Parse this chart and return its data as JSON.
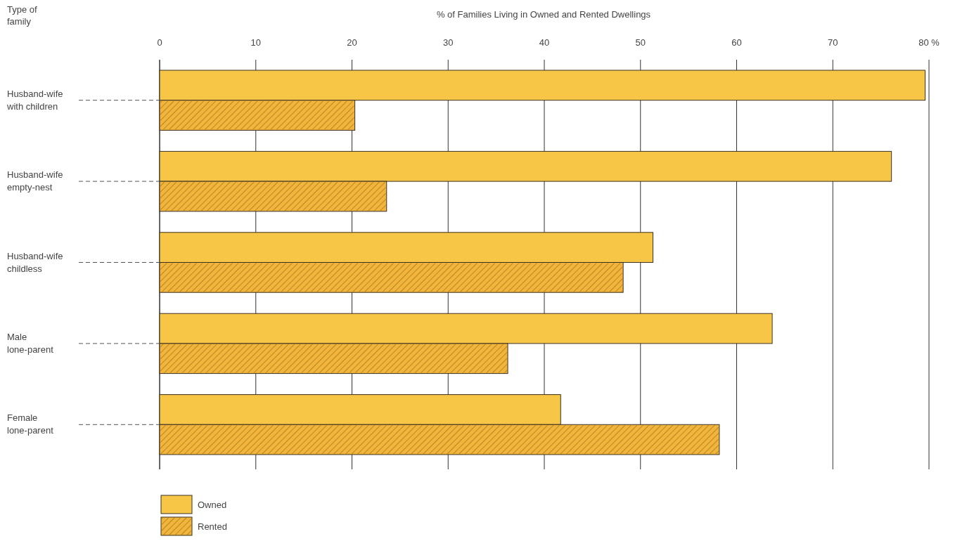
{
  "chart_data": {
    "type": "bar",
    "orientation": "horizontal",
    "title": "% of Families Living in Owned and Rented Dwellings",
    "ylabel": "Type of family",
    "categories": [
      "Husband-wife\nwith children",
      "Husband-wife\nempty-nest",
      "Husband-wife\nchildless",
      "Male\nlone-parent",
      "Female\nlone-parent"
    ],
    "series": [
      {
        "name": "Owned",
        "color": "#f8c646",
        "values": [
          79.6,
          76.1,
          51.3,
          63.7,
          41.7
        ]
      },
      {
        "name": "Rented",
        "color": "#f2b43a",
        "values": [
          20.3,
          23.6,
          48.2,
          36.2,
          58.2
        ]
      }
    ],
    "xlim": [
      0,
      80
    ],
    "xticks": [
      0,
      10,
      20,
      30,
      40,
      50,
      60,
      70,
      {
        "value": 80,
        "label": "80 %"
      }
    ],
    "grid": "x",
    "legend": "bottom left"
  }
}
